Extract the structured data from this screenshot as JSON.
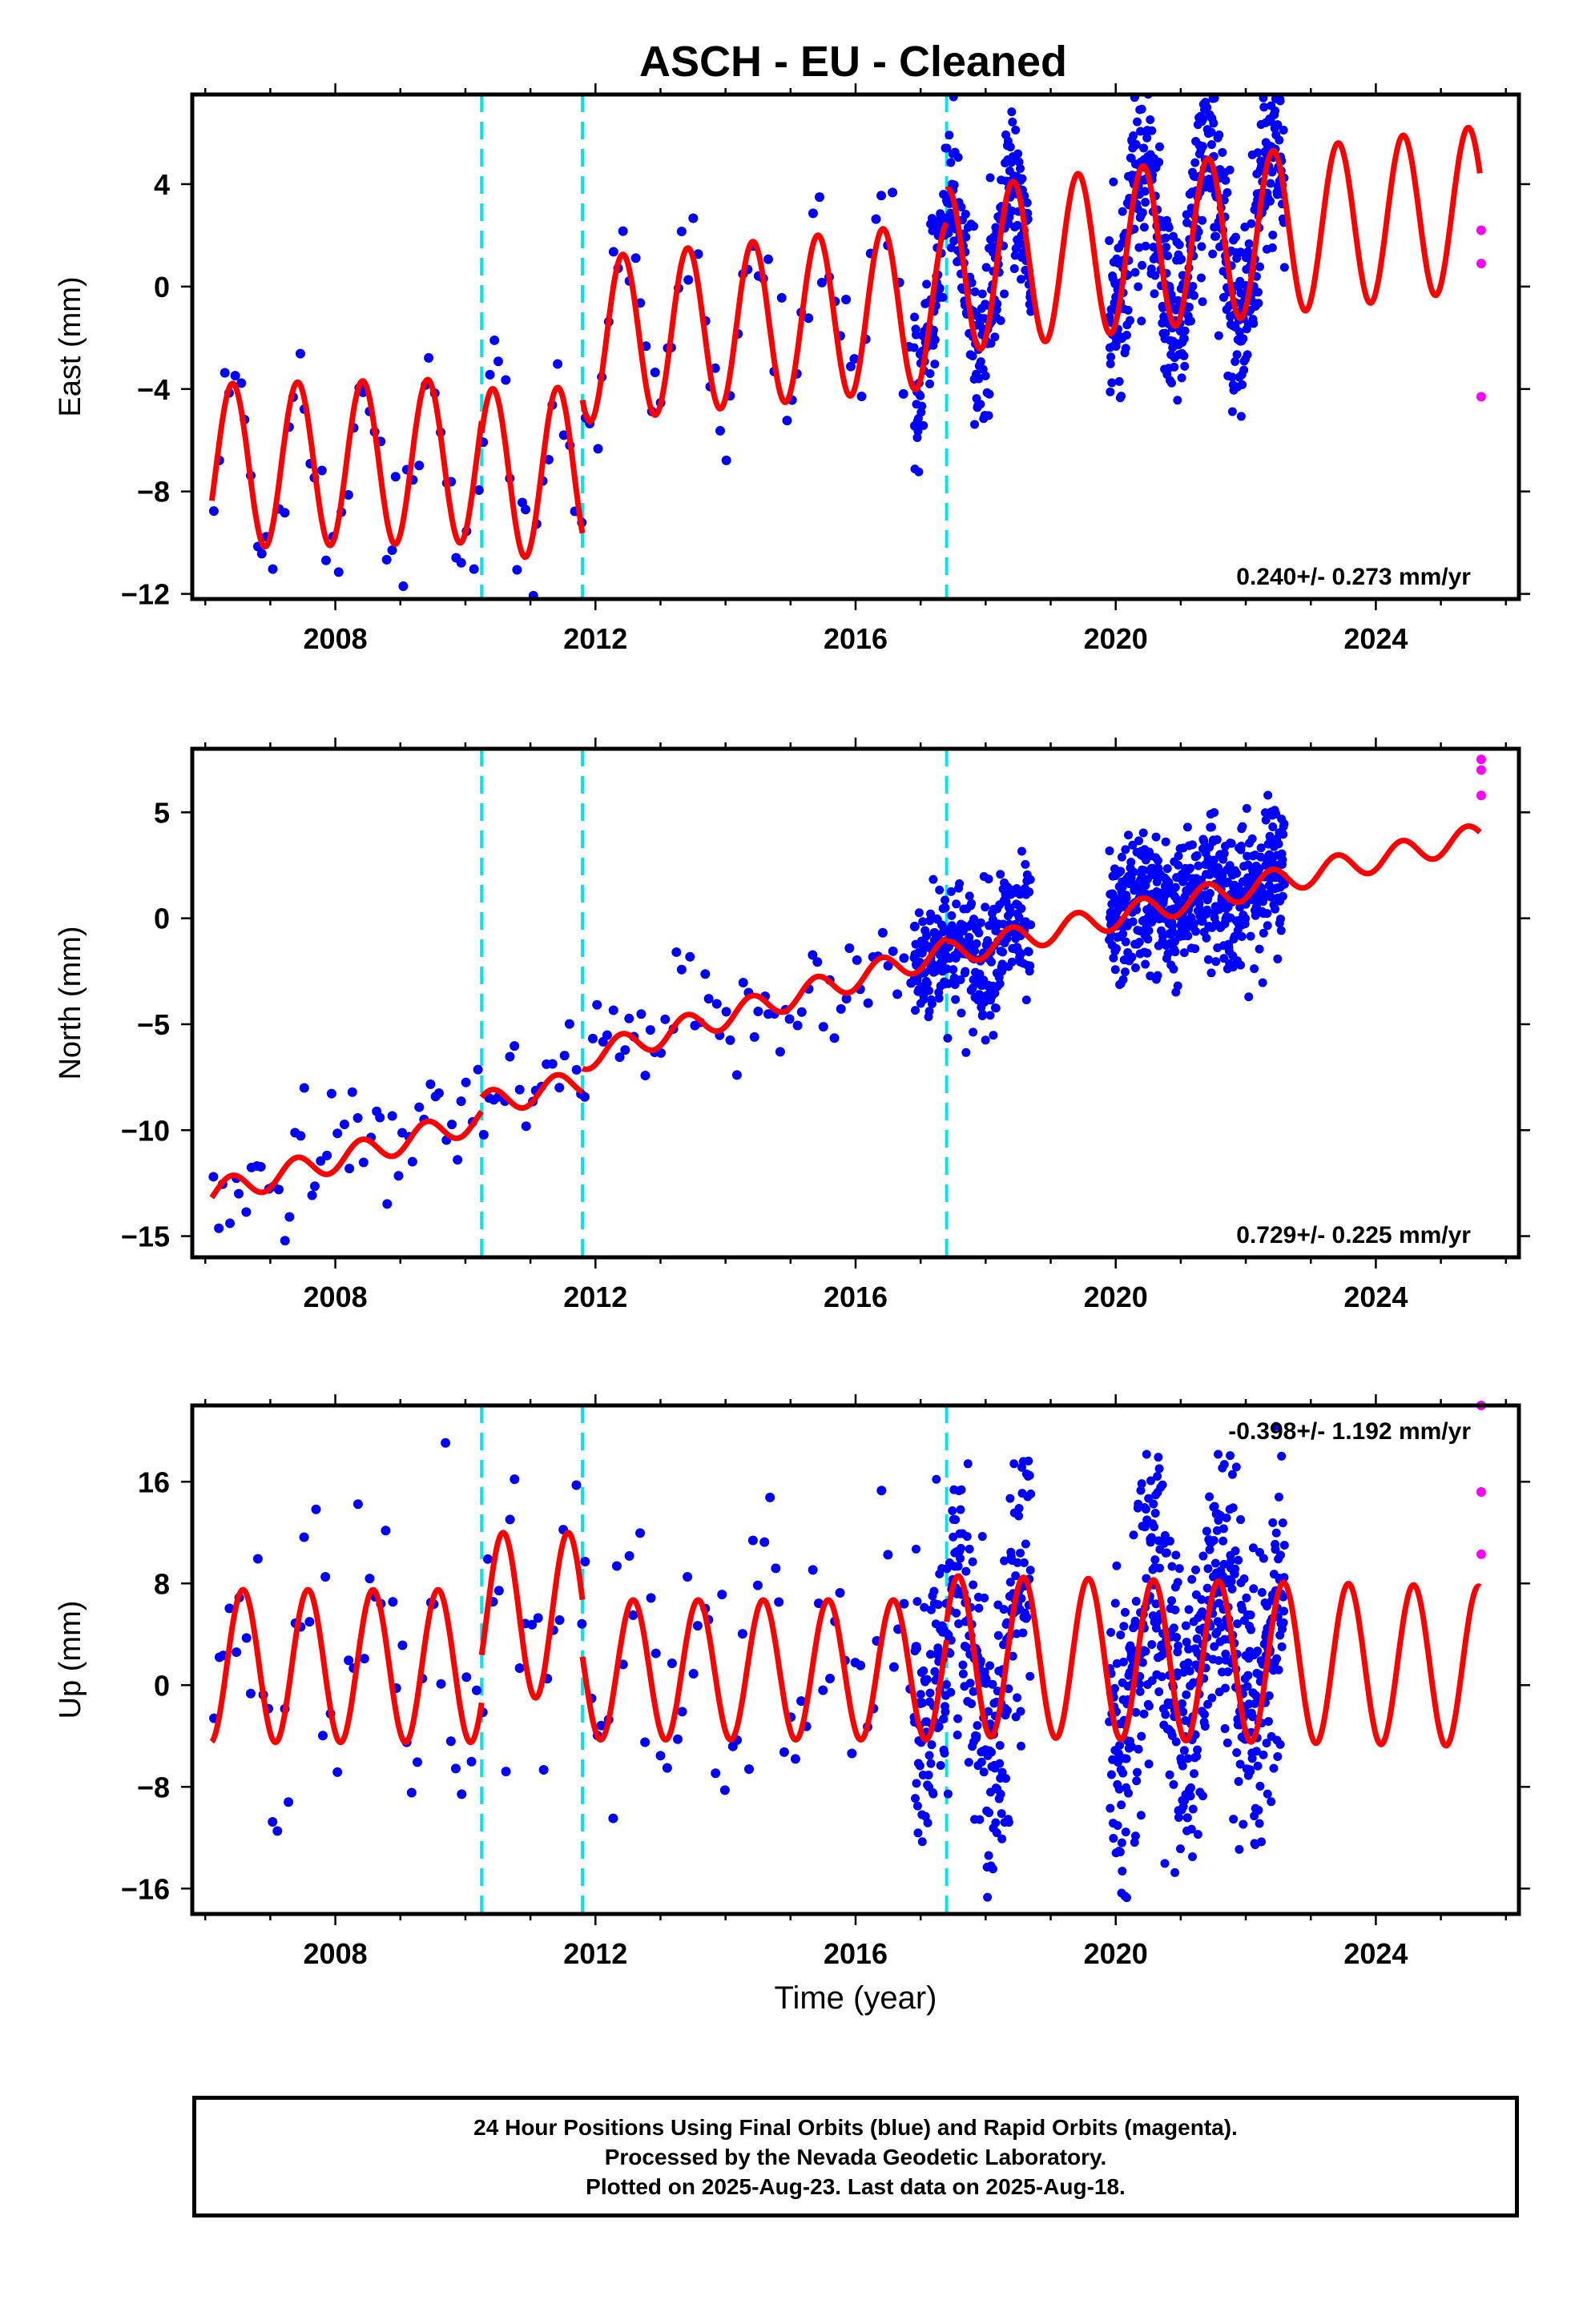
{
  "title": "ASCH  - EU - Cleaned",
  "xlabel": "Time (year)",
  "colors": {
    "final": "#0000ff",
    "rapid": "#ff00ff",
    "model": "#ff0000",
    "breaks": "#00e5ee",
    "frame": "#000000"
  },
  "caption": {
    "line1": "24 Hour Positions Using Final Orbits (blue) and Rapid Orbits (magenta).",
    "line2": "Processed by the Nevada Geodetic Laboratory.",
    "line3": "Plotted on 2025-Aug-23. Last data on 2025-Aug-18."
  },
  "chart_data": [
    {
      "type": "scatter",
      "ylabel": "East (mm)",
      "rate_label": "0.240+/- 0.273 mm/yr",
      "xlim": [
        2005.8,
        2026.2
      ],
      "ylim": [
        -12.2,
        7.5
      ],
      "xticks": [
        2008,
        2012,
        2016,
        2020,
        2024
      ],
      "yticks": [
        -12,
        -8,
        -4,
        0,
        4
      ],
      "breaks": [
        2010.25,
        2011.8,
        2017.4
      ],
      "model": {
        "segments": [
          {
            "from": 2006.1,
            "to": 2010.25,
            "offset": -7.0,
            "amp": 3.2,
            "trend": 0.05,
            "trend_ref": 2006.1
          },
          {
            "from": 2010.25,
            "to": 2011.8,
            "offset": -7.3,
            "amp": 3.3,
            "trend": 0.05,
            "trend_ref": 2010.25
          },
          {
            "from": 2011.8,
            "to": 2017.4,
            "offset": -2.1,
            "amp": 3.2,
            "trend": 0.25,
            "trend_ref": 2011.8
          },
          {
            "from": 2017.4,
            "to": 2025.6,
            "offset": 0.6,
            "amp": 3.2,
            "trend": 0.3,
            "trend_ref": 2017.4
          }
        ],
        "phase_peak": 0.42
      },
      "rapid_points": [
        [
          2025.62,
          2.2
        ],
        [
          2025.62,
          0.9
        ],
        [
          2025.62,
          -4.3
        ]
      ],
      "final_points": {
        "sparse": {
          "from": 2006.1,
          "to": 2016.9,
          "step": 0.083,
          "scatter": 1.3
        },
        "dense": [
          [
            2016.9,
            2018.7,
            0.006,
            1.4
          ],
          [
            2019.9,
            2022.6,
            0.005,
            1.8
          ]
        ]
      }
    },
    {
      "type": "scatter",
      "ylabel": "North (mm)",
      "rate_label": "0.729+/- 0.225 mm/yr",
      "xlim": [
        2005.8,
        2026.2
      ],
      "ylim": [
        -16,
        8
      ],
      "xticks": [
        2008,
        2012,
        2016,
        2020,
        2024
      ],
      "yticks": [
        -15,
        -10,
        -5,
        0,
        5
      ],
      "breaks": [
        2010.25,
        2011.8,
        2017.4
      ],
      "model": {
        "segments": [
          {
            "from": 2006.1,
            "to": 2010.25,
            "offset": -13.0,
            "amp": 0.6,
            "trend": 0.85,
            "trend_ref": 2006.1
          },
          {
            "from": 2010.25,
            "to": 2011.8,
            "offset": -8.8,
            "amp": 0.6,
            "trend": 0.7,
            "trend_ref": 2010.25
          },
          {
            "from": 2011.8,
            "to": 2017.4,
            "offset": -6.6,
            "amp": 0.6,
            "trend": 0.9,
            "trend_ref": 2011.8
          },
          {
            "from": 2017.4,
            "to": 2025.6,
            "offset": -1.7,
            "amp": 0.6,
            "trend": 0.68,
            "trend_ref": 2017.4
          }
        ],
        "phase_peak": 0.4
      },
      "rapid_points": [
        [
          2025.62,
          7.5
        ],
        [
          2025.62,
          7.0
        ],
        [
          2025.62,
          5.8
        ]
      ],
      "final_points": {
        "sparse": {
          "from": 2006.1,
          "to": 2016.9,
          "step": 0.083,
          "scatter": 1.4
        },
        "dense": [
          [
            2016.9,
            2018.7,
            0.006,
            1.6
          ],
          [
            2019.9,
            2022.6,
            0.005,
            1.6
          ]
        ]
      }
    },
    {
      "type": "scatter",
      "ylabel": "Up (mm)",
      "rate_label": "-0.398+/- 1.192 mm/yr",
      "xlim": [
        2005.8,
        2026.2
      ],
      "ylim": [
        -18,
        22
      ],
      "xticks": [
        2008,
        2012,
        2016,
        2020,
        2024
      ],
      "yticks": [
        -16,
        -8,
        0,
        8,
        16
      ],
      "breaks": [
        2010.25,
        2011.8,
        2017.4
      ],
      "model": {
        "segments": [
          {
            "from": 2006.1,
            "to": 2010.25,
            "offset": 1.5,
            "amp": 6.0,
            "trend": 0.0,
            "trend_ref": 2006.1
          },
          {
            "from": 2010.25,
            "to": 2011.8,
            "offset": 5.5,
            "amp": 6.5,
            "trend": 0.0,
            "trend_ref": 2010.25
          },
          {
            "from": 2011.8,
            "to": 2017.4,
            "offset": 1.2,
            "amp": 5.5,
            "trend": 0.0,
            "trend_ref": 2011.8
          },
          {
            "from": 2017.4,
            "to": 2025.6,
            "offset": 2.3,
            "amp": 6.3,
            "trend": -0.1,
            "trend_ref": 2017.4
          }
        ],
        "phase_peak": 0.58
      },
      "rapid_points": [
        [
          2025.62,
          22.0
        ],
        [
          2025.62,
          15.2
        ],
        [
          2025.62,
          10.3
        ]
      ],
      "final_points": {
        "sparse": {
          "from": 2006.1,
          "to": 2016.9,
          "step": 0.083,
          "scatter": 5.0
        },
        "dense": [
          [
            2016.9,
            2018.7,
            0.006,
            5.5
          ],
          [
            2019.9,
            2022.6,
            0.005,
            6.0
          ]
        ]
      }
    }
  ]
}
